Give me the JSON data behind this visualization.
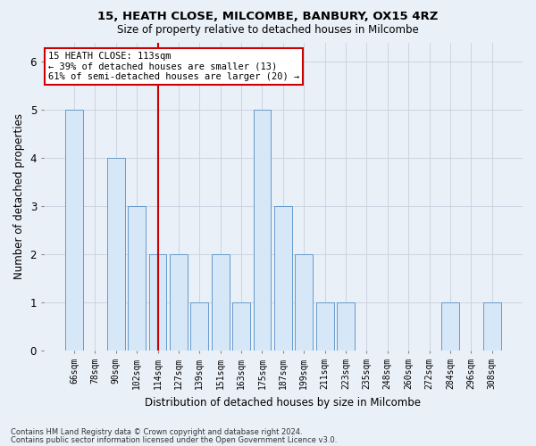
{
  "title1": "15, HEATH CLOSE, MILCOMBE, BANBURY, OX15 4RZ",
  "title2": "Size of property relative to detached houses in Milcombe",
  "xlabel": "Distribution of detached houses by size in Milcombe",
  "ylabel": "Number of detached properties",
  "categories": [
    "66sqm",
    "78sqm",
    "90sqm",
    "102sqm",
    "114sqm",
    "127sqm",
    "139sqm",
    "151sqm",
    "163sqm",
    "175sqm",
    "187sqm",
    "199sqm",
    "211sqm",
    "223sqm",
    "235sqm",
    "248sqm",
    "260sqm",
    "272sqm",
    "284sqm",
    "296sqm",
    "308sqm"
  ],
  "values": [
    5,
    0,
    4,
    3,
    2,
    2,
    1,
    2,
    1,
    5,
    3,
    2,
    1,
    1,
    0,
    0,
    0,
    0,
    1,
    0,
    1
  ],
  "bar_color": "#d6e8f7",
  "bar_edge_color": "#6699cc",
  "highlight_index": 4,
  "red_line_color": "#cc0000",
  "annotation_text": "15 HEATH CLOSE: 113sqm\n← 39% of detached houses are smaller (13)\n61% of semi-detached houses are larger (20) →",
  "annotation_box_color": "#ffffff",
  "annotation_box_edge": "#cc0000",
  "ylim": [
    0,
    6.4
  ],
  "yticks": [
    0,
    1,
    2,
    3,
    4,
    5,
    6
  ],
  "footer1": "Contains HM Land Registry data © Crown copyright and database right 2024.",
  "footer2": "Contains public sector information licensed under the Open Government Licence v3.0.",
  "bg_color": "#eaf0f8",
  "grid_color": "#c8d0de",
  "fig_width": 6.0,
  "fig_height": 5.0,
  "dpi": 100
}
